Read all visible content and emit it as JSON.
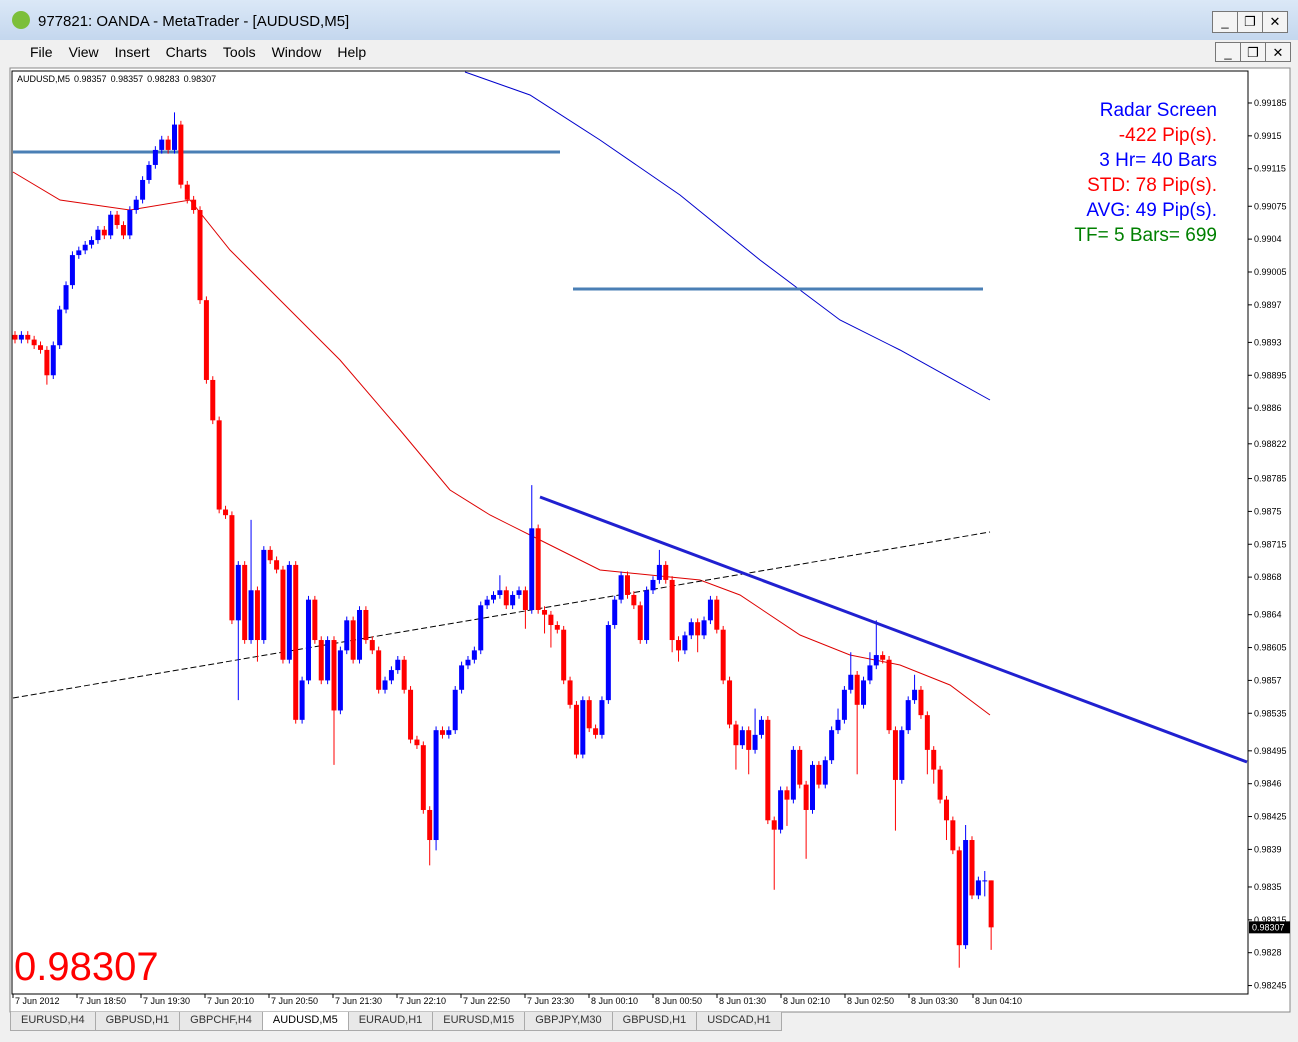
{
  "window": {
    "title": "977821: OANDA - MetaTrader - [AUDUSD,M5]",
    "menu": [
      "File",
      "View",
      "Insert",
      "Charts",
      "Tools",
      "Window",
      "Help"
    ],
    "tabs": [
      "EURUSD,H4",
      "GBPUSD,H1",
      "GBPCHF,H4",
      "AUDUSD,M5",
      "EURAUD,H1",
      "EURUSD,M15",
      "GBPJPY,M30",
      "GBPUSD,H1",
      "USDCAD,H1"
    ],
    "active_tab": 3
  },
  "chart_data": {
    "type": "candlestick",
    "symbol": "AUDUSD,M5",
    "up_color": "#0000ff",
    "down_color": "#ff0000",
    "ylim": [
      0.98236,
      0.99218
    ],
    "yticks": [
      0.99185,
      0.9915,
      0.99115,
      0.99075,
      0.9904,
      0.99005,
      0.9897,
      0.9893,
      0.98895,
      0.9886,
      0.98822,
      0.98785,
      0.9875,
      0.98715,
      0.9868,
      0.9864,
      0.98605,
      0.9857,
      0.98535,
      0.98495,
      0.9846,
      0.98425,
      0.9839,
      0.9835,
      0.98315,
      0.9828,
      0.98245
    ],
    "time_labels": [
      "7 Jun 2012",
      "7 Jun 18:50",
      "7 Jun 19:30",
      "7 Jun 20:10",
      "7 Jun 20:50",
      "7 Jun 21:30",
      "7 Jun 22:10",
      "7 Jun 22:50",
      "7 Jun 23:30",
      "8 Jun 00:10",
      "8 Jun 00:50",
      "8 Jun 01:30",
      "8 Jun 02:10",
      "8 Jun 02:50",
      "8 Jun 03:30",
      "8 Jun 04:10"
    ],
    "radar": [
      {
        "text": "Radar Screen",
        "color": "#0000ff"
      },
      {
        "text": "-422 Pip(s).",
        "color": "#ff0000"
      },
      {
        "text": "3 Hr= 40 Bars",
        "color": "#0000ff"
      },
      {
        "text": "STD: 78 Pip(s).",
        "color": "#ff0000"
      },
      {
        "text": "AVG: 49 Pip(s).",
        "color": "#0000ff"
      },
      {
        "text": "TF= 5 Bars= 699",
        "color": "#008000"
      }
    ],
    "ohlc": [
      [
        0.98938,
        0.98942,
        0.98929,
        0.98933
      ],
      [
        0.98933,
        0.98942,
        0.98929,
        0.98938
      ],
      [
        0.98938,
        0.98942,
        0.98929,
        0.98933
      ],
      [
        0.98933,
        0.98937,
        0.98923,
        0.98927
      ],
      [
        0.98927,
        0.98931,
        0.98918,
        0.98922
      ],
      [
        0.98922,
        0.98926,
        0.98885,
        0.98895
      ],
      [
        0.98895,
        0.98931,
        0.98891,
        0.98927
      ],
      [
        0.98927,
        0.98969,
        0.98923,
        0.98965
      ],
      [
        0.98965,
        0.98995,
        0.98961,
        0.98991
      ],
      [
        0.98991,
        0.99027,
        0.98987,
        0.99023
      ],
      [
        0.99023,
        0.99032,
        0.99019,
        0.99028
      ],
      [
        0.99028,
        0.99038,
        0.99024,
        0.99034
      ],
      [
        0.99034,
        0.99043,
        0.9903,
        0.99039
      ],
      [
        0.99039,
        0.99054,
        0.99035,
        0.9905
      ],
      [
        0.9905,
        0.99054,
        0.9904,
        0.99044
      ],
      [
        0.99044,
        0.9907,
        0.9904,
        0.99066
      ],
      [
        0.99066,
        0.9907,
        0.99051,
        0.99055
      ],
      [
        0.99055,
        0.99059,
        0.9904,
        0.99044
      ],
      [
        0.99044,
        0.99075,
        0.9904,
        0.99071
      ],
      [
        0.99071,
        0.99086,
        0.99067,
        0.99082
      ],
      [
        0.99082,
        0.99107,
        0.99078,
        0.99103
      ],
      [
        0.99103,
        0.99123,
        0.99099,
        0.99119
      ],
      [
        0.99119,
        0.99139,
        0.99115,
        0.99135
      ],
      [
        0.99135,
        0.9915,
        0.99131,
        0.99146
      ],
      [
        0.99146,
        0.9915,
        0.99131,
        0.99135
      ],
      [
        0.99135,
        0.99175,
        0.99131,
        0.99162
      ],
      [
        0.99162,
        0.99166,
        0.99094,
        0.99098
      ],
      [
        0.99098,
        0.99102,
        0.99078,
        0.99082
      ],
      [
        0.99082,
        0.99086,
        0.99067,
        0.99071
      ],
      [
        0.99071,
        0.99075,
        0.98971,
        0.98975
      ],
      [
        0.98975,
        0.98979,
        0.98886,
        0.9889
      ],
      [
        0.9889,
        0.98894,
        0.98843,
        0.98847
      ],
      [
        0.98847,
        0.98851,
        0.98748,
        0.98752
      ],
      [
        0.98752,
        0.98756,
        0.98742,
        0.98746
      ],
      [
        0.98746,
        0.9875,
        0.9863,
        0.98634
      ],
      [
        0.98634,
        0.98697,
        0.98549,
        0.98693
      ],
      [
        0.98693,
        0.98697,
        0.98609,
        0.98613
      ],
      [
        0.98613,
        0.98741,
        0.98609,
        0.98666
      ],
      [
        0.98666,
        0.9867,
        0.9859,
        0.98613
      ],
      [
        0.98613,
        0.98713,
        0.98609,
        0.98709
      ],
      [
        0.98709,
        0.98713,
        0.98694,
        0.98698
      ],
      [
        0.98698,
        0.98702,
        0.98684,
        0.98688
      ],
      [
        0.98688,
        0.98692,
        0.98588,
        0.98592
      ],
      [
        0.98592,
        0.98697,
        0.98588,
        0.98693
      ],
      [
        0.98693,
        0.98697,
        0.98524,
        0.98528
      ],
      [
        0.98528,
        0.98574,
        0.98524,
        0.9857
      ],
      [
        0.9857,
        0.9866,
        0.98566,
        0.98656
      ],
      [
        0.98656,
        0.9866,
        0.98609,
        0.98613
      ],
      [
        0.98613,
        0.98617,
        0.98566,
        0.9857
      ],
      [
        0.9857,
        0.98617,
        0.98566,
        0.98613
      ],
      [
        0.98613,
        0.98617,
        0.9848,
        0.98538
      ],
      [
        0.98538,
        0.98606,
        0.98534,
        0.98602
      ],
      [
        0.98602,
        0.98638,
        0.98598,
        0.98634
      ],
      [
        0.98634,
        0.98638,
        0.98588,
        0.98592
      ],
      [
        0.98592,
        0.98649,
        0.98588,
        0.98645
      ],
      [
        0.98645,
        0.98649,
        0.98609,
        0.98613
      ],
      [
        0.98613,
        0.98617,
        0.98598,
        0.98602
      ],
      [
        0.98602,
        0.98606,
        0.98556,
        0.9856
      ],
      [
        0.9856,
        0.98574,
        0.98556,
        0.9857
      ],
      [
        0.9857,
        0.98585,
        0.98566,
        0.98581
      ],
      [
        0.98581,
        0.98596,
        0.98577,
        0.98592
      ],
      [
        0.98592,
        0.98596,
        0.98556,
        0.9856
      ],
      [
        0.9856,
        0.98564,
        0.98503,
        0.98507
      ],
      [
        0.98507,
        0.98511,
        0.98497,
        0.98501
      ],
      [
        0.98501,
        0.98505,
        0.98428,
        0.98432
      ],
      [
        0.98432,
        0.98436,
        0.98373,
        0.984
      ],
      [
        0.984,
        0.98521,
        0.98389,
        0.98517
      ],
      [
        0.98517,
        0.98521,
        0.98508,
        0.98512
      ],
      [
        0.98512,
        0.98521,
        0.98508,
        0.98517
      ],
      [
        0.98517,
        0.98564,
        0.98513,
        0.9856
      ],
      [
        0.9856,
        0.9859,
        0.98556,
        0.98586
      ],
      [
        0.98586,
        0.98596,
        0.98582,
        0.98592
      ],
      [
        0.98592,
        0.98606,
        0.98588,
        0.98602
      ],
      [
        0.98602,
        0.98654,
        0.98598,
        0.9865
      ],
      [
        0.9865,
        0.9866,
        0.98646,
        0.98656
      ],
      [
        0.98656,
        0.98665,
        0.98652,
        0.98661
      ],
      [
        0.98661,
        0.98682,
        0.98657,
        0.98666
      ],
      [
        0.98666,
        0.9867,
        0.98646,
        0.9865
      ],
      [
        0.9865,
        0.98665,
        0.98646,
        0.98661
      ],
      [
        0.98661,
        0.9867,
        0.98657,
        0.98666
      ],
      [
        0.98666,
        0.9867,
        0.98625,
        0.98645
      ],
      [
        0.98645,
        0.98778,
        0.98641,
        0.98732
      ],
      [
        0.98732,
        0.98736,
        0.98641,
        0.98645
      ],
      [
        0.98645,
        0.98649,
        0.9862,
        0.9864
      ],
      [
        0.9864,
        0.98644,
        0.98605,
        0.98629
      ],
      [
        0.98629,
        0.98633,
        0.9862,
        0.98624
      ],
      [
        0.98624,
        0.98628,
        0.98566,
        0.9857
      ],
      [
        0.9857,
        0.98574,
        0.9854,
        0.98544
      ],
      [
        0.98544,
        0.98548,
        0.98487,
        0.98491
      ],
      [
        0.98491,
        0.98553,
        0.98487,
        0.98549
      ],
      [
        0.98549,
        0.98553,
        0.98515,
        0.98519
      ],
      [
        0.98519,
        0.98523,
        0.98508,
        0.98512
      ],
      [
        0.98512,
        0.98553,
        0.98508,
        0.98549
      ],
      [
        0.98549,
        0.98633,
        0.98545,
        0.98629
      ],
      [
        0.98629,
        0.9866,
        0.98625,
        0.98656
      ],
      [
        0.98656,
        0.98686,
        0.98652,
        0.98682
      ],
      [
        0.98682,
        0.98686,
        0.98657,
        0.98661
      ],
      [
        0.98661,
        0.98665,
        0.98646,
        0.9865
      ],
      [
        0.9865,
        0.98654,
        0.98609,
        0.98613
      ],
      [
        0.98613,
        0.9867,
        0.98609,
        0.98666
      ],
      [
        0.98666,
        0.98681,
        0.98662,
        0.98677
      ],
      [
        0.98677,
        0.98709,
        0.98673,
        0.98693
      ],
      [
        0.98693,
        0.98697,
        0.98673,
        0.98677
      ],
      [
        0.98677,
        0.98681,
        0.986,
        0.98613
      ],
      [
        0.98613,
        0.98617,
        0.9859,
        0.98602
      ],
      [
        0.98602,
        0.98622,
        0.98598,
        0.98618
      ],
      [
        0.98618,
        0.98636,
        0.98614,
        0.98632
      ],
      [
        0.98632,
        0.98636,
        0.986,
        0.98618
      ],
      [
        0.98618,
        0.98638,
        0.98614,
        0.98634
      ],
      [
        0.98634,
        0.9866,
        0.9863,
        0.98656
      ],
      [
        0.98656,
        0.9866,
        0.9862,
        0.98624
      ],
      [
        0.98624,
        0.98628,
        0.98566,
        0.9857
      ],
      [
        0.9857,
        0.98574,
        0.98519,
        0.98523
      ],
      [
        0.98523,
        0.98527,
        0.98475,
        0.98501
      ],
      [
        0.98501,
        0.98521,
        0.98497,
        0.98517
      ],
      [
        0.98517,
        0.98521,
        0.9847,
        0.98496
      ],
      [
        0.98496,
        0.9854,
        0.98492,
        0.98512
      ],
      [
        0.98512,
        0.98532,
        0.98508,
        0.98528
      ],
      [
        0.98528,
        0.98532,
        0.98417,
        0.98421
      ],
      [
        0.98421,
        0.98425,
        0.98347,
        0.98411
      ],
      [
        0.98411,
        0.98457,
        0.98407,
        0.98453
      ],
      [
        0.98453,
        0.98457,
        0.98415,
        0.98443
      ],
      [
        0.98443,
        0.985,
        0.98439,
        0.98496
      ],
      [
        0.98496,
        0.985,
        0.98455,
        0.98459
      ],
      [
        0.98459,
        0.98463,
        0.9838,
        0.98432
      ],
      [
        0.98432,
        0.98484,
        0.98428,
        0.9848
      ],
      [
        0.9848,
        0.98484,
        0.98455,
        0.98459
      ],
      [
        0.98459,
        0.98489,
        0.98455,
        0.98485
      ],
      [
        0.98485,
        0.98521,
        0.98481,
        0.98517
      ],
      [
        0.98517,
        0.9854,
        0.98513,
        0.98528
      ],
      [
        0.98528,
        0.98564,
        0.98524,
        0.9856
      ],
      [
        0.9856,
        0.986,
        0.98556,
        0.98576
      ],
      [
        0.98576,
        0.9858,
        0.9847,
        0.98544
      ],
      [
        0.98544,
        0.98574,
        0.9854,
        0.9857
      ],
      [
        0.9857,
        0.986,
        0.98566,
        0.98586
      ],
      [
        0.98586,
        0.98634,
        0.98582,
        0.98597
      ],
      [
        0.98597,
        0.98601,
        0.98588,
        0.98592
      ],
      [
        0.98592,
        0.98596,
        0.98513,
        0.98517
      ],
      [
        0.98517,
        0.98521,
        0.9841,
        0.98464
      ],
      [
        0.98464,
        0.98521,
        0.9846,
        0.98517
      ],
      [
        0.98517,
        0.98553,
        0.98513,
        0.98549
      ],
      [
        0.98549,
        0.98576,
        0.98545,
        0.9856
      ],
      [
        0.9856,
        0.98564,
        0.98529,
        0.98533
      ],
      [
        0.98533,
        0.98537,
        0.9847,
        0.98496
      ],
      [
        0.98496,
        0.985,
        0.9846,
        0.98475
      ],
      [
        0.98475,
        0.98479,
        0.98439,
        0.98443
      ],
      [
        0.98443,
        0.98447,
        0.984,
        0.98421
      ],
      [
        0.98421,
        0.98425,
        0.98385,
        0.98389
      ],
      [
        0.98389,
        0.98393,
        0.98264,
        0.98288
      ],
      [
        0.98288,
        0.98416,
        0.98284,
        0.984
      ],
      [
        0.984,
        0.98404,
        0.98337,
        0.98341
      ],
      [
        0.98341,
        0.98361,
        0.98337,
        0.98357
      ],
      [
        0.98357,
        0.98367,
        0.9834,
        0.98357
      ],
      [
        0.98357,
        0.98357,
        0.98283,
        0.98307
      ]
    ]
  }
}
